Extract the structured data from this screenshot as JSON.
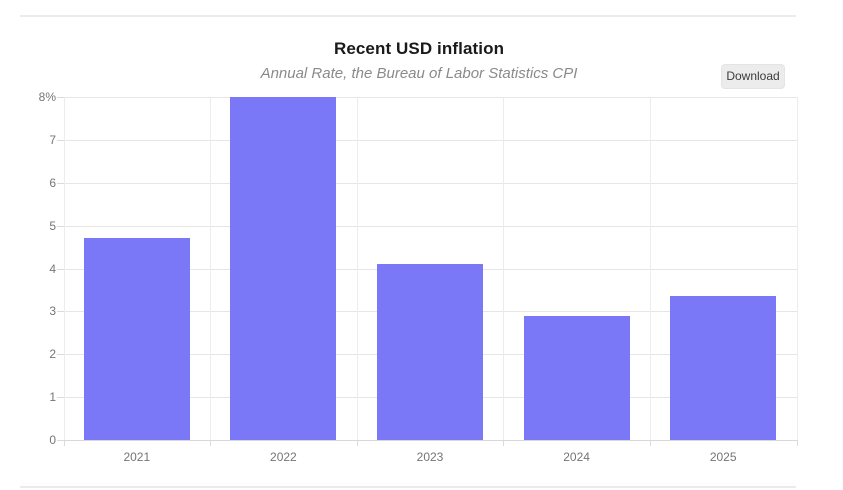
{
  "header": {
    "title": "Recent USD inflation",
    "subtitle": "Annual Rate, the Bureau of Labor Statistics CPI",
    "download_label": "Download"
  },
  "chart_data": {
    "type": "bar",
    "title": "Recent USD inflation",
    "subtitle": "Annual Rate, the Bureau of Labor Statistics CPI",
    "categories": [
      "2021",
      "2022",
      "2023",
      "2024",
      "2025"
    ],
    "values": [
      4.7,
      8.0,
      4.1,
      2.9,
      3.35
    ],
    "xlabel": "",
    "ylabel": "",
    "ylim": [
      0,
      8
    ],
    "yticks": [
      0,
      1,
      2,
      3,
      4,
      5,
      6,
      7,
      8
    ],
    "ytick_labels": [
      "0",
      "1",
      "2",
      "3",
      "4",
      "5",
      "6",
      "7",
      "8%"
    ],
    "grid": true,
    "legend": false,
    "bar_color": "#7b78f7"
  },
  "colors": {
    "bar": "#7b78f7",
    "grid": "#e6e6e6",
    "grid_vertical": "#ececec",
    "axis": "#d8d8d8",
    "tick_text": "#757575",
    "title": "#1a1a1a",
    "subtitle": "#8a8a8a",
    "divider": "#ebebeb",
    "button_bg": "#ececec",
    "button_text": "#3c3c3c"
  }
}
